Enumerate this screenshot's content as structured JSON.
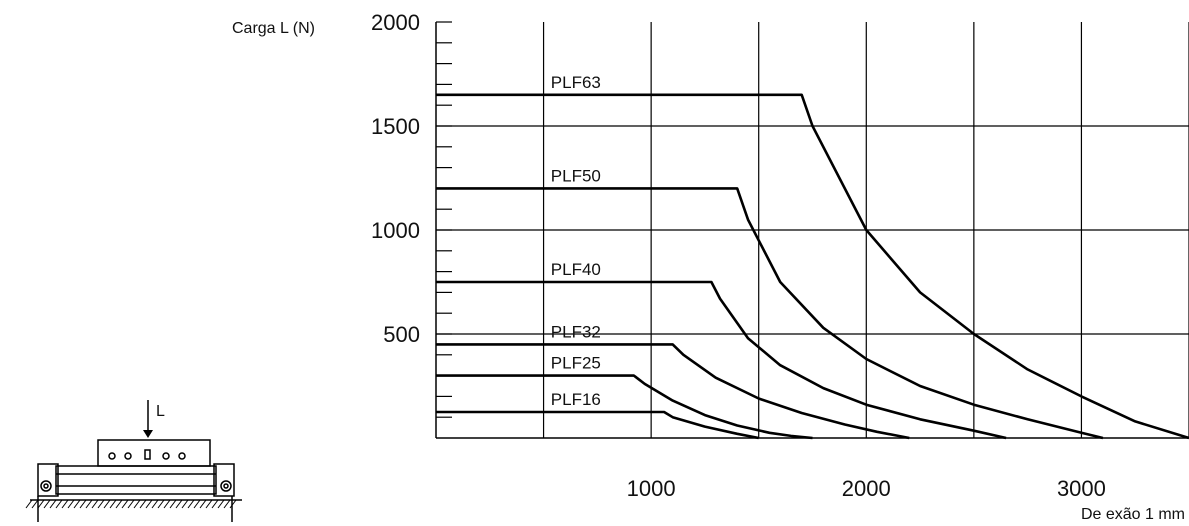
{
  "chart_data": {
    "type": "line",
    "ylabel": "Carga L (N)",
    "xlabel": "De exão 1 mm",
    "ylim": [
      0,
      2000
    ],
    "xlim": [
      0,
      3500
    ],
    "y_ticks": [
      500,
      1000,
      1500,
      2000
    ],
    "y_tick_labels": [
      "500",
      "1000",
      "1500",
      "2000"
    ],
    "x_ticks": [
      1000,
      2000,
      3000
    ],
    "x_tick_labels": [
      "1000",
      "2000",
      "3000"
    ],
    "grid": true,
    "series": [
      {
        "name": "PLF63",
        "x": [
          0,
          1700,
          1750,
          2000,
          2250,
          2500,
          2750,
          3000,
          3250,
          3500
        ],
        "y": [
          1650,
          1650,
          1500,
          1000,
          700,
          500,
          330,
          200,
          80,
          0
        ]
      },
      {
        "name": "PLF50",
        "x": [
          0,
          1400,
          1450,
          1600,
          1800,
          2000,
          2250,
          2500,
          2750,
          3000,
          3100
        ],
        "y": [
          1200,
          1200,
          1050,
          750,
          530,
          380,
          250,
          160,
          90,
          25,
          0
        ]
      },
      {
        "name": "PLF40",
        "x": [
          0,
          1280,
          1320,
          1450,
          1600,
          1800,
          2000,
          2250,
          2500,
          2650
        ],
        "y": [
          750,
          750,
          670,
          480,
          350,
          240,
          160,
          90,
          35,
          0
        ]
      },
      {
        "name": "PLF32",
        "x": [
          0,
          1100,
          1150,
          1300,
          1500,
          1700,
          1900,
          2050,
          2200
        ],
        "y": [
          450,
          450,
          400,
          290,
          190,
          120,
          65,
          30,
          0
        ]
      },
      {
        "name": "PLF25",
        "x": [
          0,
          920,
          970,
          1100,
          1250,
          1400,
          1550,
          1650,
          1750
        ],
        "y": [
          300,
          300,
          260,
          180,
          110,
          60,
          25,
          10,
          0
        ]
      },
      {
        "name": "PLF16",
        "x": [
          0,
          1060,
          1100,
          1250,
          1400,
          1500
        ],
        "y": [
          125,
          125,
          100,
          55,
          20,
          0
        ]
      }
    ]
  },
  "diagram": {
    "arrow_label": "L"
  }
}
